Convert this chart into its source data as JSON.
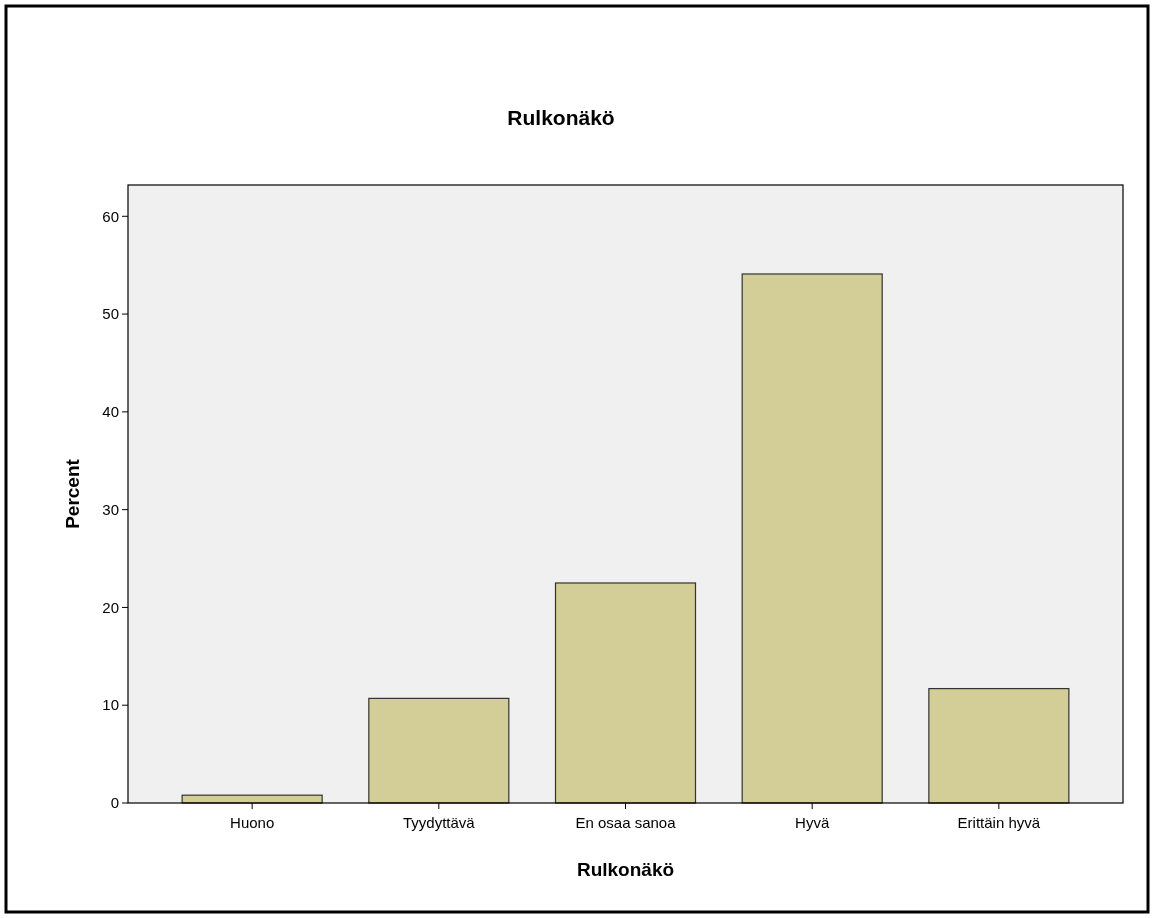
{
  "chart_data": {
    "type": "bar",
    "title": "Rulkonäkö",
    "xlabel": "Rulkonäkö",
    "ylabel": "Percent",
    "categories": [
      "Huono",
      "Tyydyttävä",
      "En osaa sanoa",
      "Hyvä",
      "Erittäin hyvä"
    ],
    "values": [
      0.8,
      10.7,
      22.5,
      54.1,
      11.7
    ],
    "color": "#d3ce97",
    "ylim": [
      0,
      63.2
    ],
    "yticks": [
      0,
      10,
      20,
      30,
      40,
      50,
      60
    ],
    "grid": false
  }
}
